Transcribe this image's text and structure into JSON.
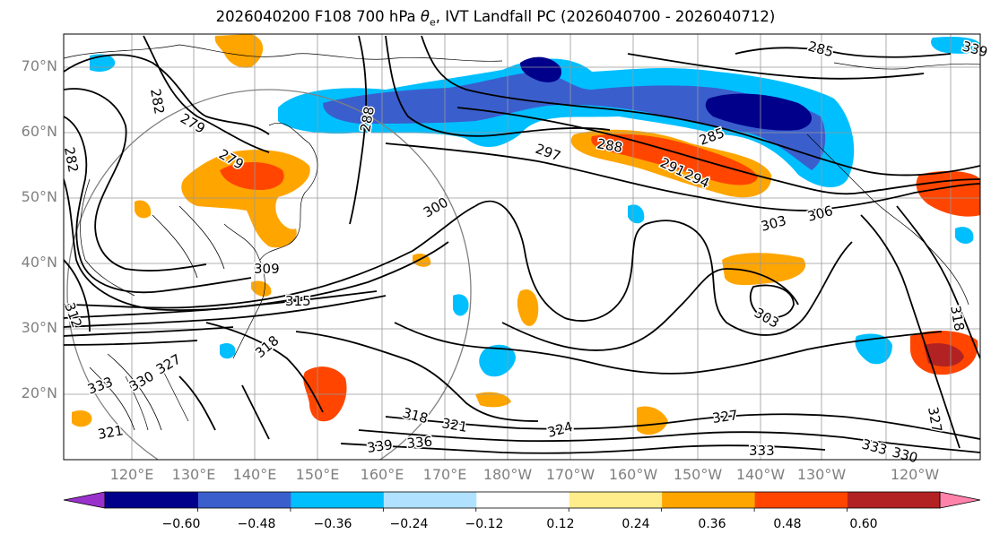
{
  "title": {
    "prefix": "2026040200 F108 700 hPa ",
    "theta_symbol": "θ",
    "theta_sub": "e",
    "suffix": ", IVT Landfall PC (2026040700 - 2026040712)"
  },
  "latitude_labels": [
    "70°N",
    "60°N",
    "50°N",
    "40°N",
    "30°N",
    "20°N"
  ],
  "longitude_labels": [
    "120°E",
    "130°E",
    "140°E",
    "150°E",
    "160°E",
    "170°E",
    "180°W",
    "170°W",
    "160°W",
    "150°W",
    "140°W",
    "130°W",
    "120°W"
  ],
  "colorbar": {
    "colors": [
      "#9932cc",
      "#00008b",
      "#3a5fcd",
      "#00bfff",
      "#b0e2ff",
      "#ffffff",
      "#ffec8b",
      "#ffa500",
      "#ff4500",
      "#b22222",
      "#ff82ab"
    ],
    "extend_low": "#9932cc",
    "extend_high": "#ff82ab",
    "tick_labels": [
      "−0.60",
      "−0.48",
      "−0.36",
      "−0.24",
      "−0.12",
      "0.12",
      "0.24",
      "0.36",
      "0.48",
      "0.60"
    ]
  },
  "contour_labels": [
    "285",
    "282",
    "279",
    "288",
    "297",
    "288",
    "291",
    "294",
    "285",
    "282",
    "279",
    "300",
    "309",
    "315",
    "312",
    "303",
    "306",
    "303",
    "318",
    "318",
    "330",
    "327",
    "333",
    "339",
    "336",
    "318",
    "321",
    "324",
    "327",
    "333",
    "327",
    "333",
    "330",
    "339",
    "321"
  ],
  "icons": [
    "colorbar-extend-arrow-left",
    "colorbar-extend-arrow-right"
  ]
}
